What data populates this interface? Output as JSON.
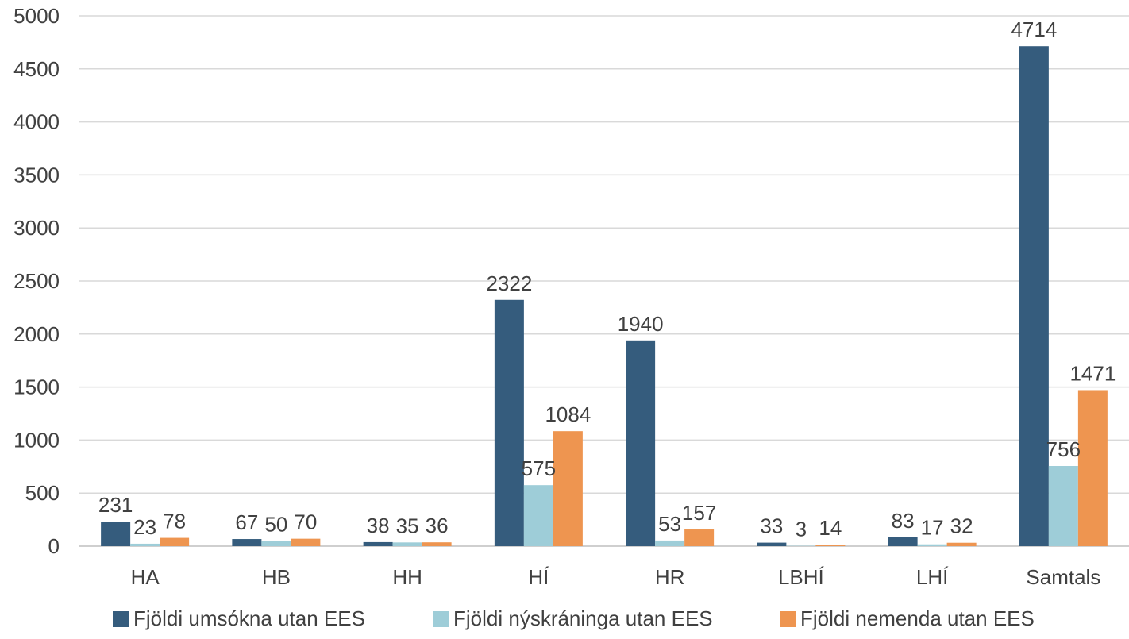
{
  "chart_data": {
    "type": "bar",
    "title": "",
    "xlabel": "",
    "ylabel": "",
    "ylim": [
      0,
      5000
    ],
    "yticks": [
      0,
      500,
      1000,
      1500,
      2000,
      2500,
      3000,
      3500,
      4000,
      4500,
      5000
    ],
    "grid": true,
    "legend_position": "bottom",
    "categories": [
      "HA",
      "HB",
      "HH",
      "HÍ",
      "HR",
      "LBHÍ",
      "LHÍ",
      "Samtals"
    ],
    "series": [
      {
        "name": "Fjöldi umsókna utan EES",
        "color": "#355C7D",
        "values": [
          231,
          67,
          38,
          2322,
          1940,
          33,
          83,
          4714
        ]
      },
      {
        "name": "Fjöldi nýskráninga utan EES",
        "color": "#9ECDD8",
        "values": [
          23,
          50,
          35,
          575,
          53,
          3,
          17,
          756
        ]
      },
      {
        "name": "Fjöldi nemenda utan EES",
        "color": "#EE9550",
        "values": [
          78,
          70,
          36,
          1084,
          157,
          14,
          32,
          1471
        ]
      }
    ]
  }
}
